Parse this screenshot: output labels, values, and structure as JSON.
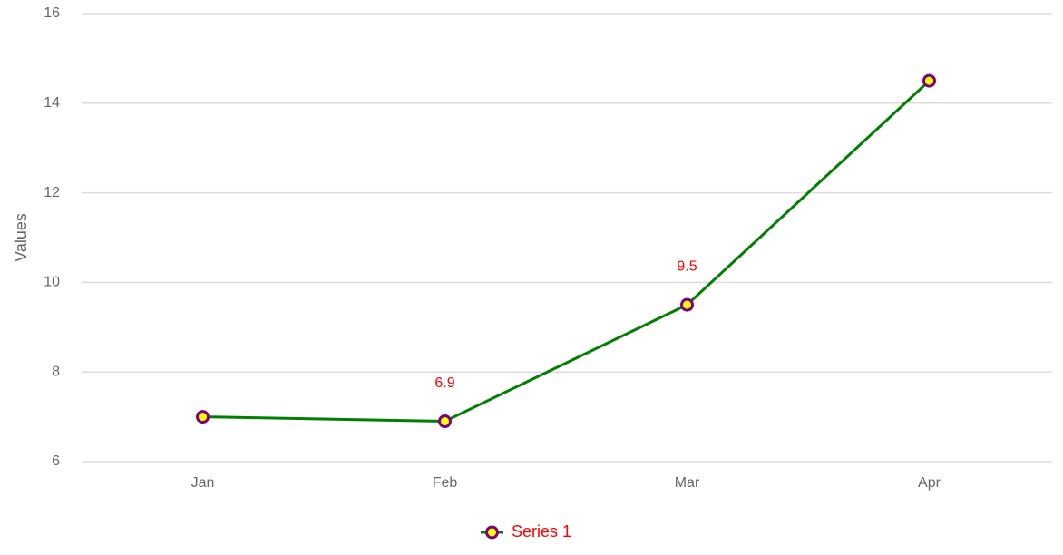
{
  "chart_data": {
    "type": "line",
    "y_label": "Values",
    "categories": [
      "Jan",
      "Feb",
      "Mar",
      "Apr"
    ],
    "series": [
      {
        "name": "Series 1",
        "color": "#008000",
        "marker_fill": "#ffff00",
        "marker_stroke": "#800080",
        "values": [
          7.0,
          6.9,
          9.5,
          14.5
        ],
        "value_labels": [
          null,
          "6.9",
          "9.5",
          null
        ],
        "label_color": "#ff0000"
      }
    ],
    "ylim": [
      6,
      16
    ],
    "yticks": [
      6,
      8,
      10,
      12,
      14,
      16
    ],
    "grid": true,
    "legend": "bottom",
    "legend_text_color": "#ff0000"
  }
}
